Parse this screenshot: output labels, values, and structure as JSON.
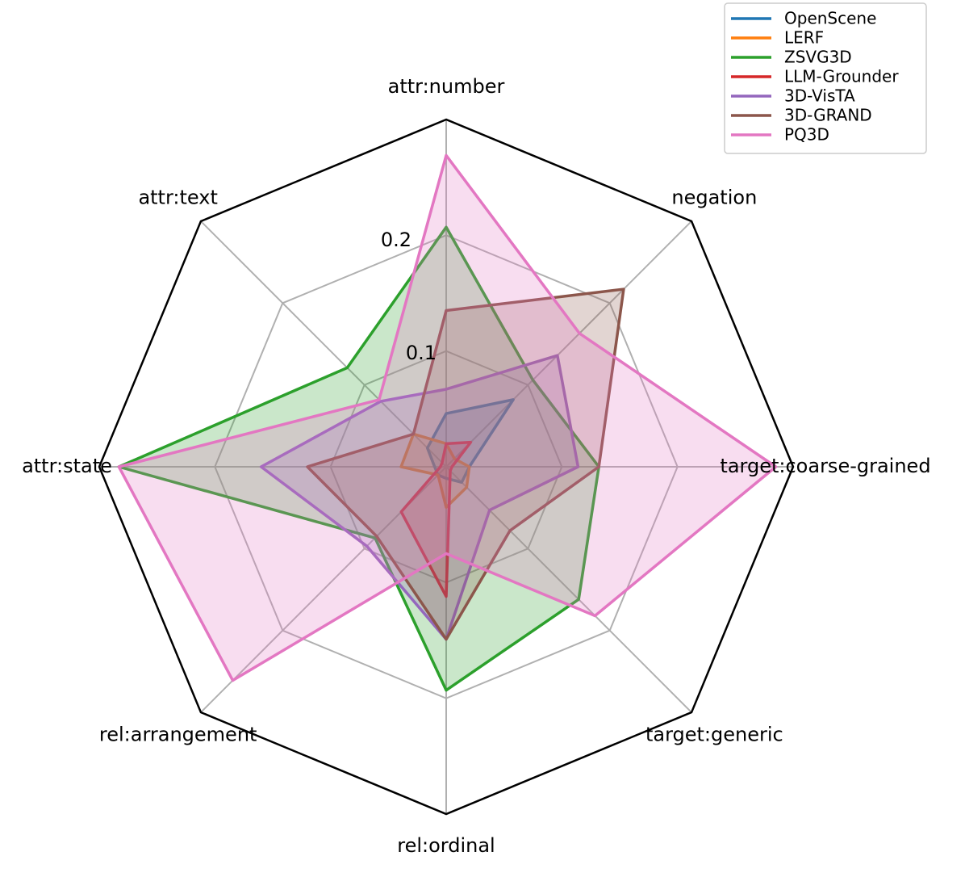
{
  "chart_data": {
    "type": "radar",
    "categories": [
      "attr:number",
      "attr:text",
      "attr:state",
      "rel:arrangement",
      "rel:ordinal",
      "target:generic",
      "target:coarse-grained",
      "negation"
    ],
    "ylim": [
      0,
      0.3
    ],
    "yticks": [
      0.1,
      0.2
    ],
    "grid": true,
    "legend": "upper right",
    "series": [
      {
        "name": "OpenScene",
        "color": "#1f77b4",
        "values": [
          0.046,
          0.023,
          0.01,
          0.01,
          0.01,
          0.019,
          0.02,
          0.082
        ]
      },
      {
        "name": "LERF",
        "color": "#ff7f0e",
        "values": [
          0.02,
          0.04,
          0.039,
          0.01,
          0.035,
          0.025,
          0.02,
          0.01
        ]
      },
      {
        "name": "ZSVG3D",
        "color": "#2ca02c",
        "values": [
          0.207,
          0.121,
          0.283,
          0.087,
          0.193,
          0.162,
          0.132,
          0.106
        ]
      },
      {
        "name": "LLM-Grounder",
        "color": "#d62728",
        "values": [
          0.02,
          0.005,
          0.005,
          0.055,
          0.112,
          0.005,
          0.005,
          0.03
        ]
      },
      {
        "name": "3D-VisTA",
        "color": "#9467bd",
        "values": [
          0.067,
          0.08,
          0.16,
          0.097,
          0.149,
          0.053,
          0.114,
          0.136
        ]
      },
      {
        "name": "3D-GRAND",
        "color": "#8c564b",
        "values": [
          0.135,
          0.04,
          0.12,
          0.085,
          0.149,
          0.078,
          0.132,
          0.217
        ]
      },
      {
        "name": "PQ3D",
        "color": "#e377c2",
        "values": [
          0.269,
          0.082,
          0.283,
          0.261,
          0.075,
          0.182,
          0.285,
          0.163
        ]
      }
    ]
  }
}
